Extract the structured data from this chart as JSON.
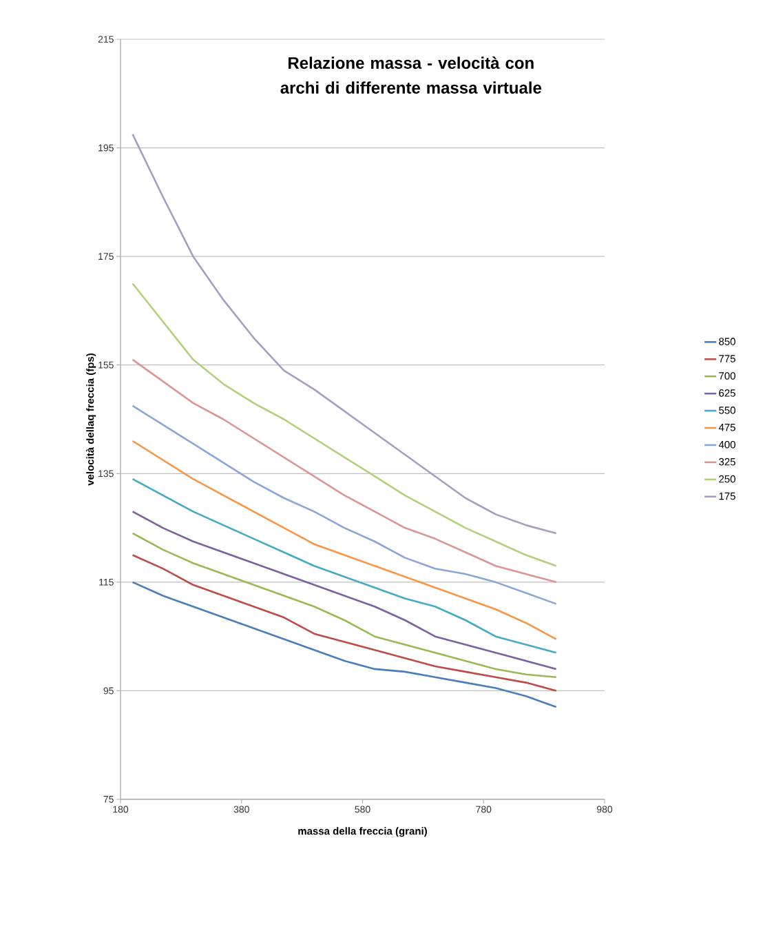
{
  "chart_data": {
    "type": "line",
    "title": "Relazione massa - velocità con archi di differente massa virtuale",
    "xlabel": "massa della freccia (grani)",
    "ylabel": "velocità dellaq freccia (fps)",
    "x": [
      200,
      250,
      300,
      350,
      400,
      450,
      500,
      550,
      600,
      650,
      700,
      750,
      800,
      850,
      900
    ],
    "xlim": [
      180,
      980
    ],
    "xticks": [
      180,
      380,
      580,
      780,
      980
    ],
    "ylim": [
      75,
      215
    ],
    "yticks": [
      75,
      95,
      115,
      135,
      155,
      175,
      195,
      215
    ],
    "grid": "y",
    "legend": "right",
    "marker": "none",
    "line_style": "solid",
    "series": [
      {
        "name": "850",
        "color": "#4a7ebb",
        "values": [
          115,
          112.5,
          110.5,
          108.5,
          106.5,
          104.5,
          102.5,
          100.5,
          99,
          98.5,
          97.5,
          96.5,
          95.5,
          94,
          92
        ]
      },
      {
        "name": "775",
        "color": "#be4b48",
        "values": [
          120,
          117.5,
          114.5,
          112.5,
          110.5,
          108.5,
          105.5,
          104,
          102.5,
          101,
          99.5,
          98.5,
          97.5,
          96.5,
          95
        ]
      },
      {
        "name": "700",
        "color": "#98b954",
        "values": [
          124,
          121,
          118.5,
          116.5,
          114.5,
          112.5,
          110.5,
          108,
          105,
          103.5,
          102,
          100.5,
          99,
          98,
          97.5
        ]
      },
      {
        "name": "625",
        "color": "#7d60a0",
        "values": [
          128,
          125,
          122.5,
          120.5,
          118.5,
          116.5,
          114.5,
          112.5,
          110.5,
          108,
          105,
          103.5,
          102,
          100.5,
          99
        ]
      },
      {
        "name": "550",
        "color": "#46aac5",
        "values": [
          134,
          131,
          128,
          125.5,
          123,
          120.5,
          118,
          116,
          114,
          112,
          110.5,
          108,
          105,
          103.5,
          102
        ]
      },
      {
        "name": "475",
        "color": "#f79646",
        "values": [
          141,
          137.5,
          134,
          131,
          128,
          125,
          122,
          120,
          118,
          116,
          114,
          112,
          110,
          107.5,
          104.5
        ]
      },
      {
        "name": "400",
        "color": "#8aa6d6",
        "values": [
          147.5,
          144,
          140.5,
          137,
          133.5,
          130.5,
          128,
          125,
          122.5,
          119.5,
          117.5,
          116.5,
          115,
          113,
          111
        ]
      },
      {
        "name": "325",
        "color": "#d99694",
        "values": [
          156,
          152,
          148,
          145,
          141.5,
          138,
          134.5,
          131,
          128,
          125,
          123,
          120.5,
          118,
          116.5,
          115
        ]
      },
      {
        "name": "250",
        "color": "#b3cf7e",
        "values": [
          170,
          163,
          156,
          151.5,
          148,
          145,
          141.5,
          138,
          134.5,
          131,
          128,
          125,
          122.5,
          120,
          118
        ]
      },
      {
        "name": "175",
        "color": "#a99bc3",
        "values": [
          197.5,
          186,
          175,
          167,
          160,
          154,
          150.5,
          146.5,
          142.5,
          138.5,
          134.5,
          130.5,
          127.5,
          125.5,
          124
        ]
      }
    ]
  }
}
